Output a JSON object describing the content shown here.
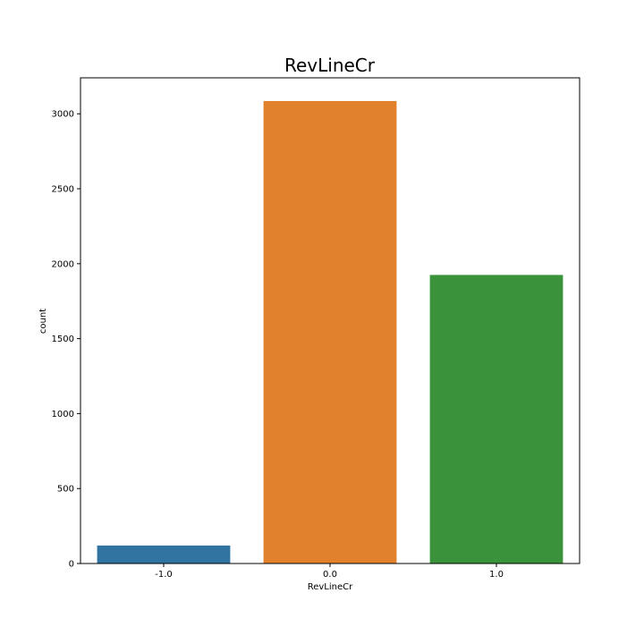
{
  "chart_data": {
    "type": "bar",
    "title": "RevLineCr",
    "xlabel": "RevLineCr",
    "ylabel": "count",
    "categories": [
      "-1.0",
      "0.0",
      "1.0"
    ],
    "values": [
      120,
      3085,
      1925
    ],
    "colors": [
      "#3274a1",
      "#e1812c",
      "#3a923a"
    ],
    "ylim": [
      0,
      3240
    ],
    "yticks": [
      0,
      500,
      1000,
      1500,
      2000,
      2500,
      3000
    ],
    "grid": false,
    "legend": "none"
  }
}
